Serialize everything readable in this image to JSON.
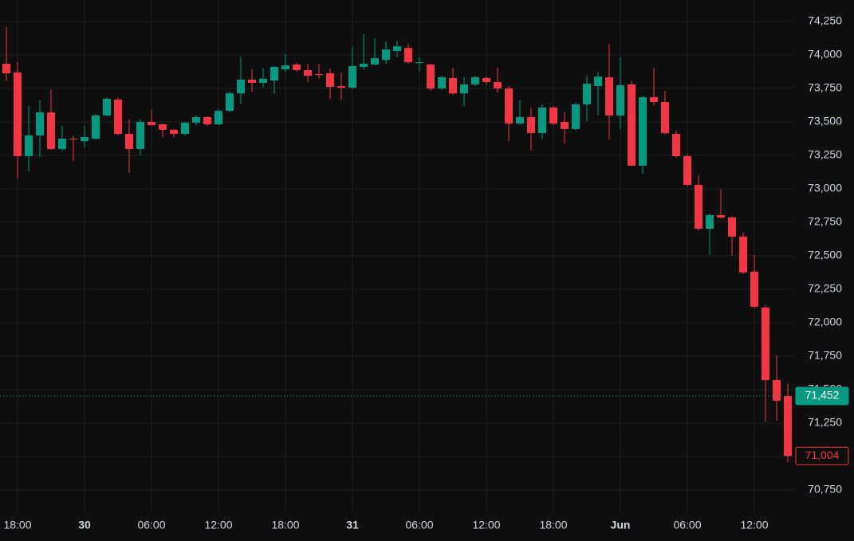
{
  "chart_data": {
    "type": "candlestick",
    "categories": [
      null,
      "18:00",
      null,
      null,
      null,
      null,
      null,
      "30",
      null,
      null,
      null,
      null,
      null,
      "06:00",
      null,
      null,
      null,
      null,
      null,
      "12:00",
      null,
      null,
      null,
      null,
      null,
      "18:00",
      null,
      null,
      null,
      null,
      null,
      "31",
      null,
      null,
      null,
      null,
      null,
      "06:00",
      null,
      null,
      null,
      null,
      null,
      "12:00",
      null,
      null,
      null,
      null,
      null,
      "18:00",
      null,
      null,
      null,
      null,
      null,
      "Jun",
      null,
      null,
      null,
      null,
      null,
      "06:00",
      null,
      null,
      null,
      null,
      null,
      "12:00",
      null,
      null,
      null
    ],
    "open": [
      73935,
      73869,
      73244,
      73399,
      73571,
      73298,
      73375,
      73357,
      73375,
      73548,
      73667,
      73411,
      73298,
      73500,
      73482,
      73441,
      73411,
      73494,
      73536,
      73482,
      73583,
      73714,
      73816,
      73792,
      73810,
      73893,
      73929,
      73887,
      73857,
      73863,
      73768,
      73756,
      73911,
      73929,
      73964,
      74030,
      74053,
      73946,
      73929,
      73750,
      73828,
      73714,
      73780,
      73828,
      73798,
      73750,
      73488,
      73536,
      73417,
      73607,
      73500,
      73447,
      73631,
      73768,
      73833,
      73548,
      73780,
      73173,
      73685,
      73649,
      73411,
      73244,
      73030,
      72702,
      72804,
      72786,
      72643,
      72381,
      72113,
      71571,
      71452
    ],
    "high": [
      74214,
      73946,
      73619,
      73661,
      73744,
      73470,
      73399,
      73470,
      73560,
      73685,
      73685,
      73518,
      73518,
      73595,
      73488,
      73447,
      73500,
      73548,
      73542,
      73595,
      73726,
      73988,
      73893,
      73899,
      73917,
      74006,
      73941,
      73935,
      73935,
      73899,
      73869,
      74065,
      74155,
      74125,
      74101,
      74107,
      74083,
      73982,
      73935,
      73845,
      73905,
      73834,
      73845,
      73839,
      73905,
      73768,
      73661,
      73607,
      73631,
      73619,
      73577,
      73643,
      73845,
      73875,
      74083,
      73982,
      73804,
      73697,
      73905,
      73732,
      73435,
      73262,
      73101,
      72816,
      72994,
      72798,
      72673,
      72506,
      72131,
      71756,
      71546
    ],
    "low": [
      73804,
      73077,
      73131,
      73238,
      73292,
      73280,
      73208,
      73310,
      73363,
      73542,
      73399,
      73119,
      73250,
      73470,
      73387,
      73387,
      73399,
      73476,
      73470,
      73476,
      73571,
      73637,
      73726,
      73756,
      73708,
      73875,
      73875,
      73798,
      73822,
      73673,
      73667,
      73744,
      73887,
      73923,
      73935,
      73982,
      73935,
      73881,
      73732,
      73738,
      73702,
      73619,
      73768,
      73780,
      73720,
      73357,
      73482,
      73286,
      73369,
      73476,
      73339,
      73435,
      73506,
      73548,
      73369,
      73447,
      73173,
      73113,
      73625,
      73405,
      73232,
      73018,
      72690,
      72506,
      72780,
      72500,
      72363,
      72107,
      71262,
      71268,
      70958
    ],
    "close": [
      73863,
      73244,
      73399,
      73571,
      73298,
      73375,
      73369,
      73387,
      73548,
      73673,
      73411,
      73298,
      73500,
      73476,
      73441,
      73411,
      73494,
      73536,
      73482,
      73583,
      73714,
      73816,
      73792,
      73822,
      73911,
      73923,
      73887,
      73845,
      73851,
      73762,
      73756,
      73917,
      73935,
      73976,
      74042,
      74065,
      73946,
      73946,
      73750,
      73834,
      73714,
      73780,
      73834,
      73798,
      73750,
      73488,
      73536,
      73417,
      73607,
      73488,
      73447,
      73631,
      73786,
      73839,
      73548,
      73774,
      73173,
      73685,
      73649,
      73417,
      73244,
      73030,
      72702,
      72804,
      72786,
      72643,
      72375,
      72119,
      71571,
      71417,
      71004
    ],
    "up_color": "#089981",
    "down_color": "#f23645",
    "ylim": [
      70583,
      74411
    ],
    "yticks": [
      {
        "value": 70750,
        "label": "70,750"
      },
      {
        "value": 71000,
        "label": "71,000"
      },
      {
        "value": 71250,
        "label": "71,250"
      },
      {
        "value": 71500,
        "label": "71,500"
      },
      {
        "value": 71750,
        "label": "71,750"
      },
      {
        "value": 72000,
        "label": "72,000"
      },
      {
        "value": 72250,
        "label": "72,250"
      },
      {
        "value": 72500,
        "label": "72,500"
      },
      {
        "value": 72750,
        "label": "72,750"
      },
      {
        "value": 73000,
        "label": "73,000"
      },
      {
        "value": 73250,
        "label": "73,250"
      },
      {
        "value": 73500,
        "label": "73,500"
      },
      {
        "value": 73750,
        "label": "73,750"
      },
      {
        "value": 74000,
        "label": "74,000"
      },
      {
        "value": 74250,
        "label": "74,250"
      }
    ],
    "grid": true,
    "price_labels": [
      {
        "value": 71452,
        "label": "71,452",
        "color": "#089981",
        "style": "filled",
        "line": true
      },
      {
        "value": 71004,
        "label": "71,004",
        "color": "#f23645",
        "style": "outline",
        "line": false
      }
    ]
  }
}
